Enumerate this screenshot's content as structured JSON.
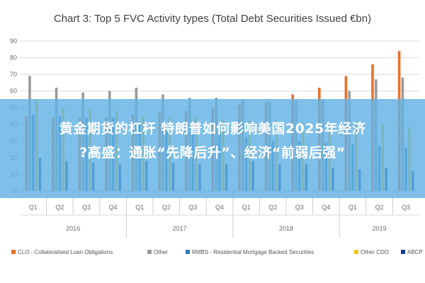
{
  "chart_data": {
    "type": "bar",
    "title": "Chart 3: Top 5 FVC Activity types (Total Debt Securities Issued €bn)",
    "ylim": [
      0,
      90
    ],
    "yticks": [
      0,
      10,
      20,
      30,
      40,
      50,
      60,
      70,
      80,
      90
    ],
    "grid": true,
    "legend_position": "bottom",
    "categories": [
      "Q1",
      "Q2",
      "Q3",
      "Q4",
      "Q1",
      "Q2",
      "Q3",
      "Q4",
      "Q1",
      "Q2",
      "Q3",
      "Q4",
      "Q1",
      "Q2",
      "Q3"
    ],
    "years": [
      {
        "label": "2016",
        "count": 4
      },
      {
        "label": "2017",
        "count": 4
      },
      {
        "label": "2018",
        "count": 4
      },
      {
        "label": "2019",
        "count": 3
      }
    ],
    "series": [
      {
        "name": "CLO - Collateralised Loan Obligations",
        "color": "#e8702a",
        "values": [
          45,
          44,
          44,
          44,
          46,
          47,
          48,
          50,
          52,
          53,
          58,
          62,
          69,
          76,
          84
        ]
      },
      {
        "name": "Other",
        "color": "#9a9a9a",
        "values": [
          69,
          62,
          59,
          60,
          62,
          58,
          56,
          56,
          55,
          54,
          54,
          55,
          60,
          67,
          68
        ]
      },
      {
        "name": "RMBS - Residential Mortgage Backed Securities",
        "color": "#2f7bbf",
        "values": [
          46,
          45,
          44,
          44,
          40,
          38,
          36,
          34,
          32,
          30,
          30,
          29,
          28,
          27,
          26
        ]
      },
      {
        "name": "Other CDO",
        "color": "#f2c218",
        "values": [
          55,
          50,
          49,
          48,
          45,
          44,
          44,
          43,
          42,
          42,
          41,
          40,
          42,
          40,
          38
        ]
      },
      {
        "name": "ABCP",
        "color": "#1a3e8c",
        "values": [
          20,
          18,
          17,
          16,
          18,
          17,
          16,
          16,
          18,
          16,
          16,
          14,
          13,
          14,
          12
        ]
      }
    ]
  },
  "overlay": {
    "line1": "黄金期货的杠杆 特朗普如何影响美国2025年经济",
    "line2": "?高盛：通胀“先降后升”、经济“前弱后强”"
  }
}
